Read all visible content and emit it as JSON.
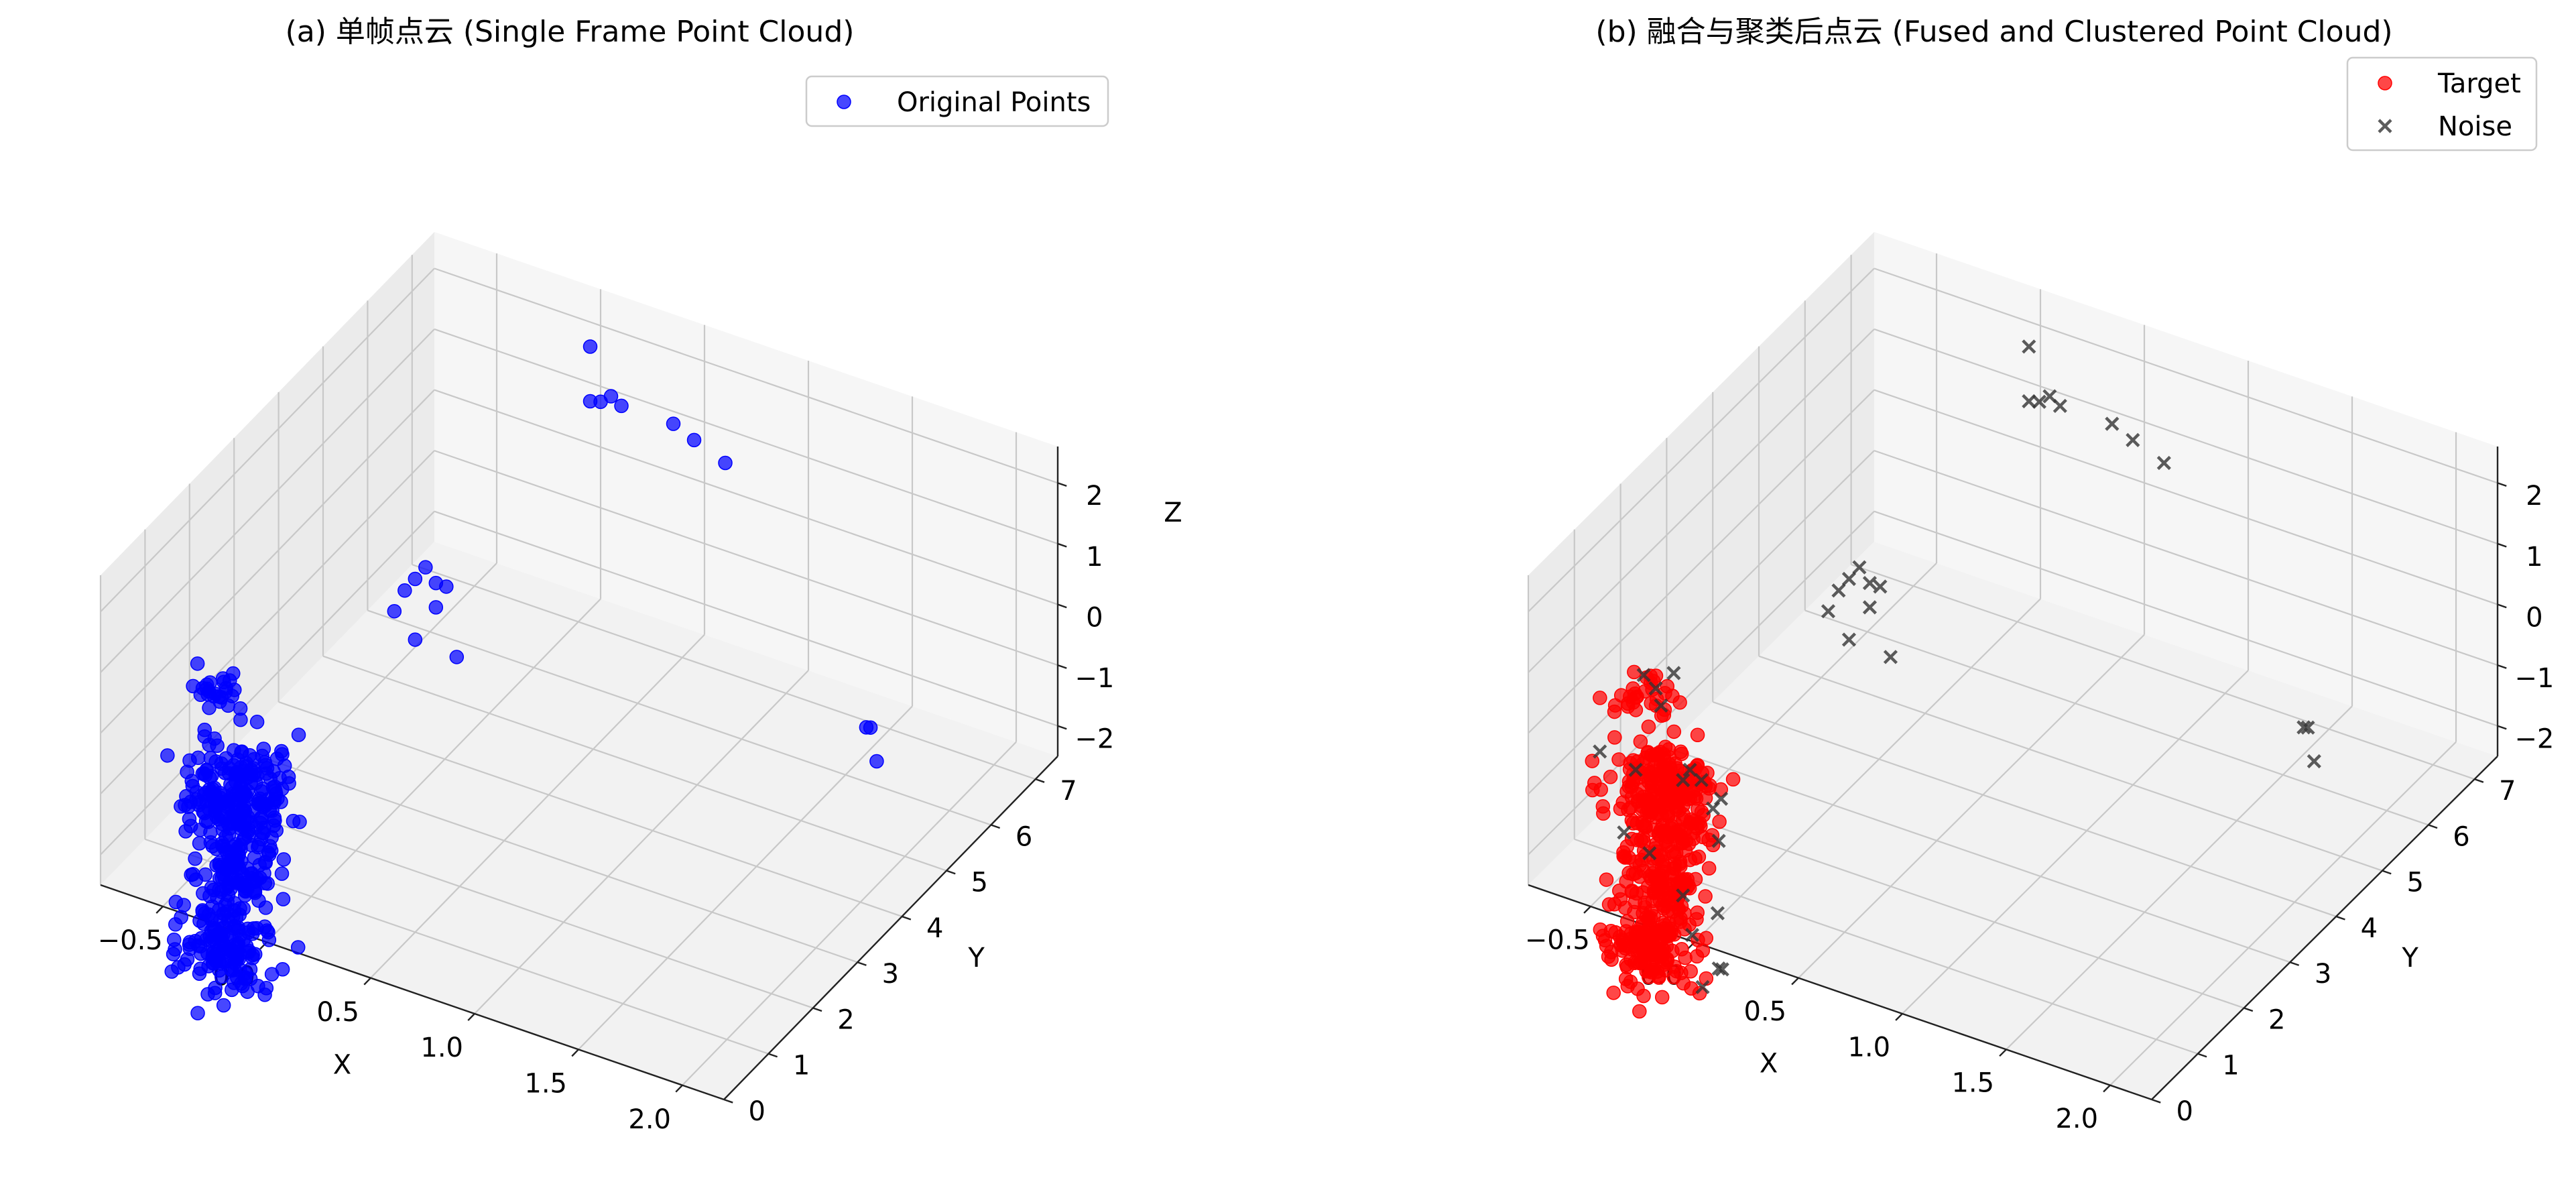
{
  "chart_data": [
    {
      "type": "scatter",
      "title": "(a) 单帧点云 (Single Frame Point Cloud)",
      "xlabel": "X",
      "ylabel": "Y",
      "zlabel": "Z",
      "xlim": [
        -0.8,
        2.2
      ],
      "ylim": [
        0,
        7.5
      ],
      "zlim": [
        -2.5,
        2.6
      ],
      "xticks": [
        "−0.5",
        "0.0",
        "0.5",
        "1.0",
        "1.5",
        "2.0"
      ],
      "yticks": [
        "0",
        "1",
        "2",
        "3",
        "4",
        "5",
        "6",
        "7"
      ],
      "zticks": [
        "−2",
        "−1",
        "0",
        "1",
        "2"
      ],
      "grid": true,
      "legend_position": "top-right",
      "series": [
        {
          "name": "Original Points",
          "marker": "circle",
          "color": "#0000ff",
          "clusters": [
            {
              "center": [
                -0.2,
                0.3,
                -0.6
              ],
              "spread": [
                0.12,
                0.25,
                0.45
              ],
              "count": 230
            },
            {
              "center": [
                -0.2,
                0.2,
                -1.8
              ],
              "spread": [
                0.08,
                0.2,
                0.22
              ],
              "count": 90
            },
            {
              "center": [
                -0.25,
                0.2,
                -3.0
              ],
              "spread": [
                0.1,
                0.2,
                0.3
              ],
              "count": 140
            },
            {
              "center": [
                -0.35,
                0.5,
                0.85
              ],
              "spread": [
                0.06,
                0.22,
                0.05
              ],
              "count": 25
            }
          ],
          "points": [
            [
              0.1,
              6.8,
              2.3
            ],
            [
              0.1,
              6.8,
              1.4
            ],
            [
              0.15,
              6.8,
              1.45
            ],
            [
              0.2,
              6.8,
              1.6
            ],
            [
              0.25,
              6.8,
              1.5
            ],
            [
              0.5,
              6.8,
              1.5
            ],
            [
              0.6,
              6.8,
              1.35
            ],
            [
              0.75,
              6.8,
              1.15
            ],
            [
              -0.05,
              3.8,
              0.75
            ],
            [
              0.0,
              3.8,
              0.55
            ],
            [
              -0.1,
              3.8,
              0.5
            ],
            [
              0.05,
              3.8,
              0.55
            ],
            [
              -0.15,
              3.8,
              0.25
            ],
            [
              0.0,
              3.8,
              0.15
            ],
            [
              -0.2,
              3.8,
              -0.15
            ],
            [
              -0.1,
              3.8,
              -0.5
            ],
            [
              0.1,
              3.8,
              -0.55
            ],
            [
              1.6,
              6.0,
              -1.6
            ],
            [
              1.62,
              6.0,
              -1.58
            ],
            [
              1.65,
              6.0,
              -2.1
            ]
          ]
        }
      ]
    },
    {
      "type": "scatter",
      "title": "(b) 融合与聚类后点云 (Fused and Clustered Point Cloud)",
      "xlabel": "X",
      "ylabel": "Y",
      "zlabel": "",
      "xlim": [
        -0.8,
        2.2
      ],
      "ylim": [
        0,
        7.5
      ],
      "zlim": [
        -2.5,
        2.6
      ],
      "xticks": [
        "−0.5",
        "0.0",
        "0.5",
        "1.0",
        "1.5",
        "2.0"
      ],
      "yticks": [
        "0",
        "1",
        "2",
        "3",
        "4",
        "5",
        "6",
        "7"
      ],
      "zticks": [
        "−2",
        "−1",
        "0",
        "1",
        "2"
      ],
      "grid": true,
      "legend_position": "top-right",
      "series": [
        {
          "name": "Target",
          "marker": "circle",
          "color": "#ff0000",
          "clusters": [
            {
              "center": [
                -0.2,
                0.3,
                -0.6
              ],
              "spread": [
                0.12,
                0.25,
                0.45
              ],
              "count": 260
            },
            {
              "center": [
                -0.2,
                0.2,
                -1.8
              ],
              "spread": [
                0.08,
                0.2,
                0.22
              ],
              "count": 100
            },
            {
              "center": [
                -0.25,
                0.2,
                -3.0
              ],
              "spread": [
                0.1,
                0.2,
                0.3
              ],
              "count": 160
            },
            {
              "center": [
                -0.35,
                0.5,
                0.85
              ],
              "spread": [
                0.06,
                0.22,
                0.05
              ],
              "count": 28
            }
          ],
          "points": []
        },
        {
          "name": "Noise",
          "marker": "x",
          "color": "#333333",
          "clusters": [],
          "points": [
            [
              0.1,
              6.8,
              2.3
            ],
            [
              0.1,
              6.8,
              1.4
            ],
            [
              0.15,
              6.8,
              1.45
            ],
            [
              0.2,
              6.8,
              1.6
            ],
            [
              0.25,
              6.8,
              1.5
            ],
            [
              0.5,
              6.8,
              1.5
            ],
            [
              0.6,
              6.8,
              1.35
            ],
            [
              0.75,
              6.8,
              1.15
            ],
            [
              -0.05,
              3.8,
              0.75
            ],
            [
              0.0,
              3.8,
              0.55
            ],
            [
              -0.1,
              3.8,
              0.5
            ],
            [
              0.05,
              3.8,
              0.55
            ],
            [
              -0.15,
              3.8,
              0.25
            ],
            [
              0.0,
              3.8,
              0.15
            ],
            [
              -0.2,
              3.8,
              -0.15
            ],
            [
              -0.1,
              3.8,
              -0.5
            ],
            [
              0.1,
              3.8,
              -0.55
            ],
            [
              1.6,
              6.0,
              -1.6
            ],
            [
              1.62,
              6.0,
              -1.58
            ],
            [
              1.65,
              6.0,
              -2.1
            ],
            [
              -0.4,
              0.7,
              0.9
            ],
            [
              -0.32,
              0.6,
              0.85
            ],
            [
              -0.25,
              0.4,
              0.8
            ],
            [
              -0.3,
              0.9,
              0.9
            ],
            [
              -0.5,
              0.2,
              -0.1
            ],
            [
              -0.1,
              0.2,
              -0.1
            ],
            [
              -0.1,
              0.6,
              -0.4
            ],
            [
              0.0,
              0.4,
              -0.6
            ],
            [
              -0.2,
              0.8,
              -0.5
            ],
            [
              -0.05,
              0.8,
              -0.8
            ],
            [
              0.05,
              0.3,
              -1.0
            ],
            [
              -0.35,
              0.3,
              -0.3
            ],
            [
              -0.45,
              0.5,
              -1.6
            ],
            [
              -0.35,
              0.6,
              -1.9
            ],
            [
              -0.1,
              0.2,
              -2.0
            ],
            [
              0.0,
              0.5,
              -2.4
            ],
            [
              -0.1,
              0.4,
              -2.8
            ],
            [
              0.05,
              0.3,
              -3.1
            ],
            [
              0.0,
              0.6,
              -3.4
            ],
            [
              -0.05,
              0.4,
              -3.6
            ]
          ]
        }
      ]
    }
  ]
}
